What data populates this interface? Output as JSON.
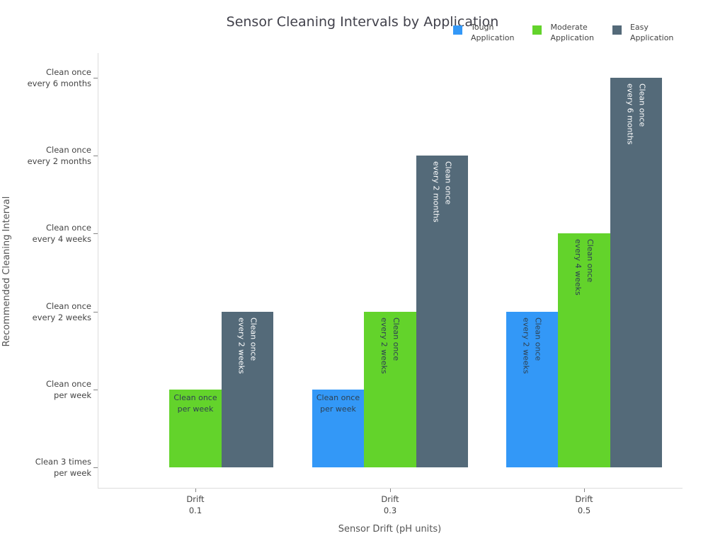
{
  "chart_data": {
    "type": "bar",
    "title": "Sensor Cleaning Intervals by Application",
    "xlabel": "Sensor Drift (pH units)",
    "ylabel": "Recommended Cleaning Interval",
    "categories": [
      "Drift\n0.1",
      "Drift\n0.3",
      "Drift\n0.5"
    ],
    "x_values": [
      0.1,
      0.3,
      0.5
    ],
    "ytick_labels": [
      "Clean 3 times\nper week",
      "Clean once\nper week",
      "Clean once\nevery 2 weeks",
      "Clean once\nevery 4 weeks",
      "Clean once\nevery 2 months",
      "Clean once\nevery 6 months"
    ],
    "ylim": [
      -0.26,
      5.32
    ],
    "grid": false,
    "legend_position": "top-right",
    "series": [
      {
        "name": "Tough Application",
        "legend_label": "Tough\nApplication",
        "color": "#3398f7",
        "label_text_color": "#2e4152",
        "values": [
          0,
          1,
          2
        ],
        "bar_labels": [
          "",
          "Clean once\nper week",
          "Clean once\nevery 2 weeks"
        ]
      },
      {
        "name": "Moderate Application",
        "legend_label": "Moderate\nApplication",
        "color": "#63d32b",
        "label_text_color": "#2e4152",
        "values": [
          1,
          2,
          3
        ],
        "bar_labels": [
          "Clean once\nper week",
          "Clean once\nevery 2 weeks",
          "Clean once\nevery 4 weeks"
        ]
      },
      {
        "name": "Easy Application",
        "legend_label": "Easy\nApplication",
        "color": "#546a79",
        "label_text_color": "#ffffff",
        "values": [
          2,
          4,
          5
        ],
        "bar_labels": [
          "Clean once\nevery 2 weeks",
          "Clean once\nevery 2 months",
          "Clean once\nevery 6 months"
        ]
      }
    ]
  }
}
